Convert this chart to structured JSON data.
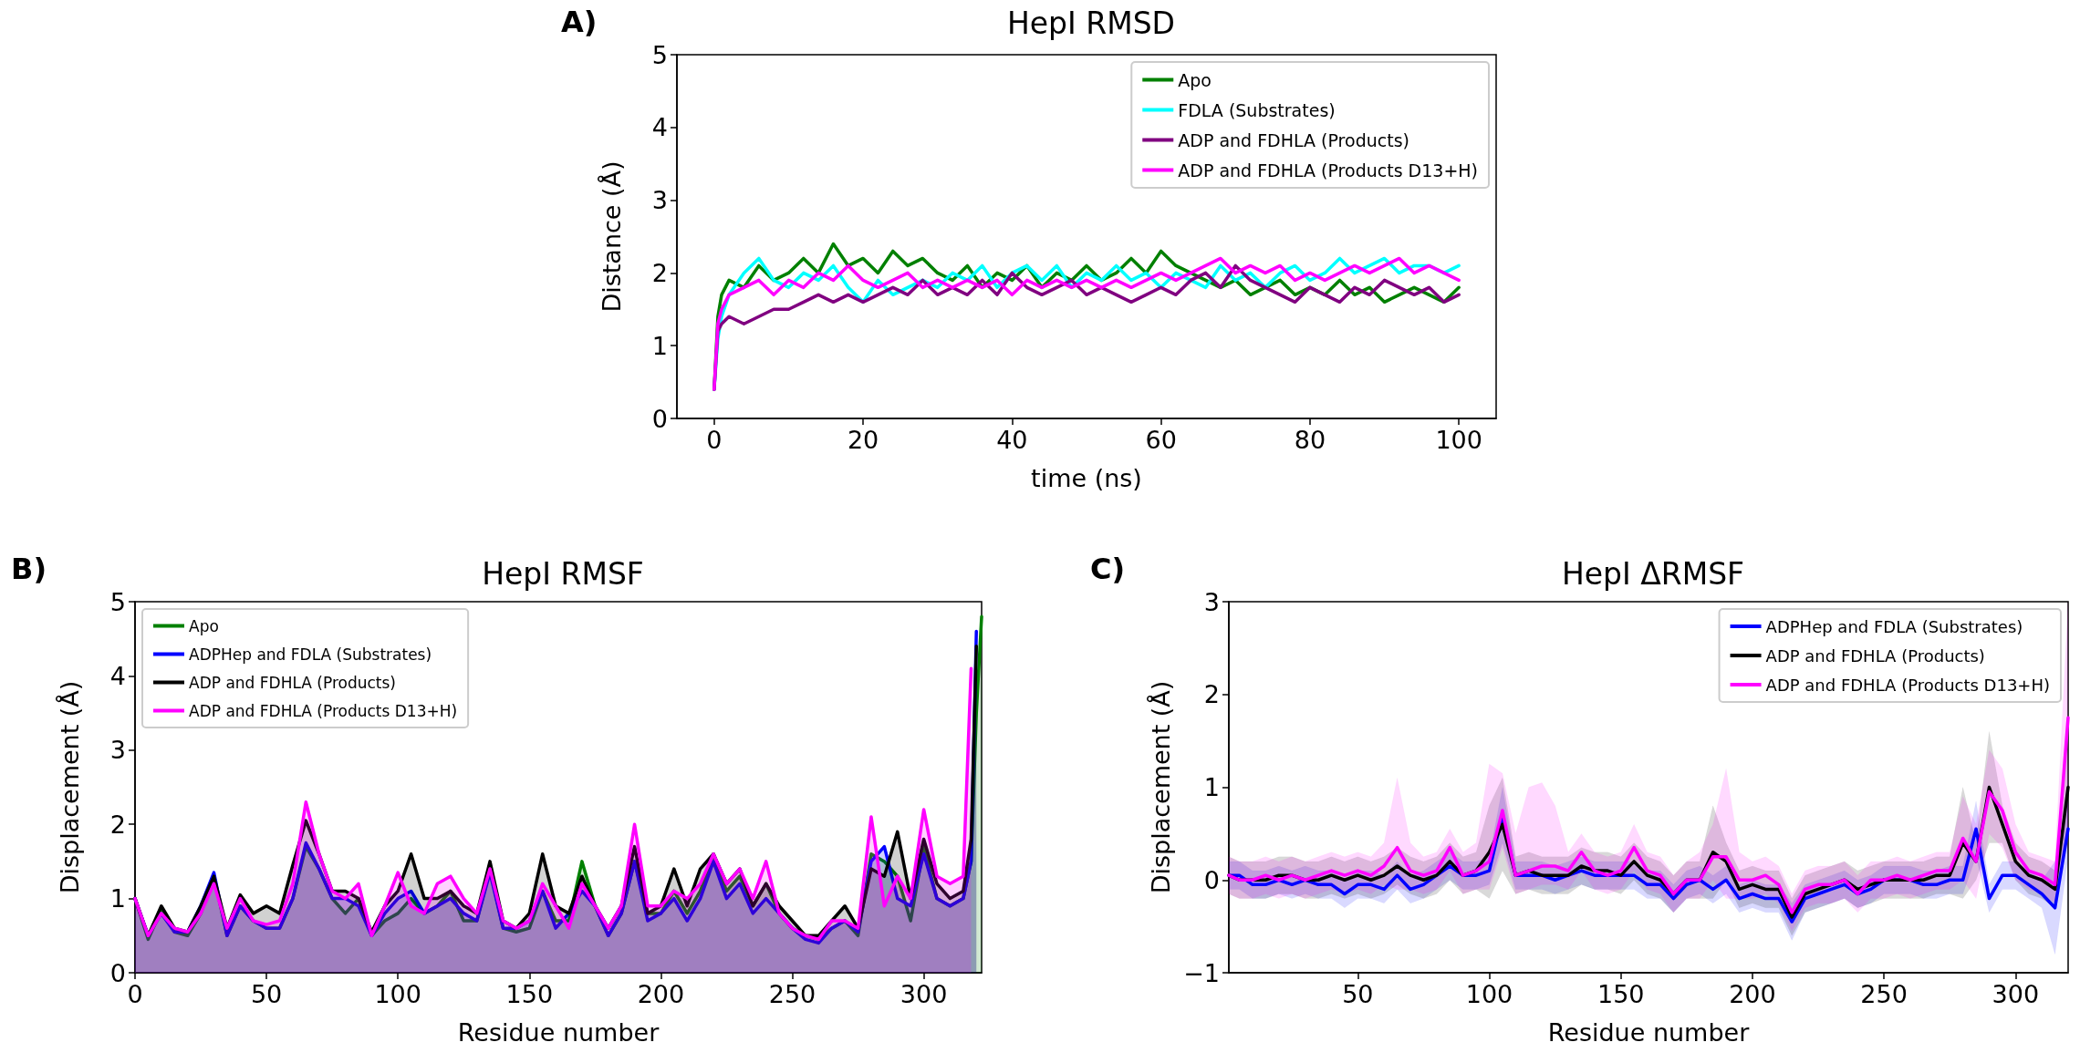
{
  "chart_data": [
    {
      "type": "line",
      "title": "HepI RMSD",
      "xlabel": "time (ns)",
      "ylabel": "Distance (Å)",
      "annotations": [
        "A)"
      ],
      "legend": "top right",
      "xlim": [
        -5,
        105
      ],
      "xticks": [
        0,
        20,
        40,
        60,
        80,
        100
      ],
      "ylim": [
        0,
        5
      ],
      "yticks": [
        0,
        1,
        2,
        3,
        4,
        5
      ],
      "x": [
        0,
        0.5,
        1,
        2,
        4,
        6,
        8,
        10,
        12,
        14,
        16,
        18,
        20,
        22,
        24,
        26,
        28,
        30,
        32,
        34,
        36,
        38,
        40,
        42,
        44,
        46,
        48,
        50,
        52,
        54,
        56,
        58,
        60,
        62,
        64,
        66,
        68,
        70,
        72,
        74,
        76,
        78,
        80,
        82,
        84,
        86,
        88,
        90,
        92,
        94,
        96,
        98,
        100
      ],
      "series": [
        {
          "name": "Apo",
          "color": "#008000",
          "values": [
            0.4,
            1.4,
            1.7,
            1.9,
            1.8,
            2.1,
            1.9,
            2.0,
            2.2,
            2.0,
            2.4,
            2.1,
            2.2,
            2.0,
            2.3,
            2.1,
            2.2,
            2.0,
            1.9,
            2.1,
            1.8,
            2.0,
            1.9,
            2.1,
            1.8,
            2.0,
            1.9,
            2.1,
            1.9,
            2.0,
            2.2,
            2.0,
            2.3,
            2.1,
            2.0,
            1.9,
            1.8,
            1.9,
            1.7,
            1.8,
            1.9,
            1.7,
            1.8,
            1.7,
            1.9,
            1.7,
            1.8,
            1.6,
            1.7,
            1.8,
            1.7,
            1.6,
            1.8
          ]
        },
        {
          "name": "FDLA (Substrates)",
          "color": "#00ffff",
          "values": [
            0.4,
            1.1,
            1.4,
            1.7,
            2.0,
            2.2,
            1.9,
            1.8,
            2.0,
            1.9,
            2.1,
            1.8,
            1.6,
            1.9,
            1.7,
            1.8,
            1.9,
            1.8,
            2.0,
            1.9,
            2.1,
            1.8,
            2.0,
            2.1,
            1.9,
            2.1,
            1.8,
            2.0,
            1.9,
            2.1,
            1.9,
            2.0,
            1.8,
            2.0,
            1.9,
            1.8,
            2.1,
            1.9,
            2.0,
            1.8,
            2.0,
            2.1,
            1.9,
            2.0,
            2.2,
            2.0,
            2.1,
            2.2,
            2.0,
            2.1,
            2.1,
            2.0,
            2.1
          ]
        },
        {
          "name": "ADP and FDHLA (Products)",
          "color": "#800080",
          "values": [
            0.4,
            1.2,
            1.3,
            1.4,
            1.3,
            1.4,
            1.5,
            1.5,
            1.6,
            1.7,
            1.6,
            1.7,
            1.6,
            1.7,
            1.8,
            1.7,
            1.9,
            1.7,
            1.8,
            1.7,
            1.9,
            1.7,
            2.0,
            1.8,
            1.7,
            1.8,
            1.9,
            1.7,
            1.8,
            1.7,
            1.6,
            1.7,
            1.8,
            1.7,
            1.9,
            2.0,
            1.8,
            2.1,
            1.9,
            1.8,
            1.7,
            1.6,
            1.8,
            1.7,
            1.6,
            1.8,
            1.7,
            1.9,
            1.8,
            1.7,
            1.8,
            1.6,
            1.7
          ]
        },
        {
          "name": "ADP and FDHLA (Products D13+H)",
          "color": "#ff00ff",
          "values": [
            0.4,
            1.3,
            1.5,
            1.7,
            1.8,
            1.9,
            1.7,
            1.9,
            1.8,
            2.0,
            1.9,
            2.1,
            1.9,
            1.8,
            1.9,
            2.0,
            1.8,
            1.9,
            1.8,
            1.9,
            1.8,
            1.9,
            1.7,
            1.9,
            1.8,
            1.9,
            1.8,
            1.9,
            1.8,
            1.9,
            1.8,
            1.9,
            2.0,
            1.9,
            2.0,
            2.1,
            2.2,
            2.0,
            2.1,
            2.0,
            2.1,
            1.9,
            2.0,
            1.9,
            2.0,
            2.1,
            2.0,
            2.1,
            2.2,
            2.0,
            2.1,
            2.0,
            1.9
          ]
        }
      ]
    },
    {
      "type": "area",
      "title": "HepI RMSF",
      "xlabel": "Residue number",
      "ylabel": "Displacement (Å)",
      "annotations": [
        "B)"
      ],
      "legend": "top left",
      "xlim": [
        0,
        322
      ],
      "xticks": [
        0,
        50,
        100,
        150,
        200,
        250,
        300
      ],
      "ylim": [
        0,
        5
      ],
      "yticks": [
        0,
        1,
        2,
        3,
        4,
        5
      ],
      "x": [
        0,
        5,
        10,
        15,
        20,
        25,
        30,
        35,
        40,
        45,
        50,
        55,
        60,
        65,
        70,
        75,
        80,
        85,
        90,
        95,
        100,
        105,
        110,
        115,
        120,
        125,
        130,
        135,
        140,
        145,
        150,
        155,
        160,
        165,
        170,
        175,
        180,
        185,
        190,
        195,
        200,
        205,
        210,
        215,
        220,
        225,
        230,
        235,
        240,
        245,
        250,
        255,
        260,
        265,
        270,
        275,
        280,
        285,
        290,
        295,
        300,
        305,
        310,
        315,
        318,
        320,
        322
      ],
      "series": [
        {
          "name": "Apo",
          "color": "#008000",
          "values": [
            1.0,
            0.45,
            0.85,
            0.55,
            0.5,
            0.8,
            1.3,
            0.5,
            0.9,
            0.7,
            0.6,
            0.6,
            1.0,
            1.7,
            1.4,
            1.0,
            0.8,
            1.0,
            0.5,
            0.7,
            0.8,
            1.0,
            0.8,
            0.9,
            1.1,
            0.7,
            0.7,
            1.4,
            0.6,
            0.55,
            0.6,
            1.1,
            0.7,
            0.7,
            1.5,
            0.9,
            0.5,
            0.8,
            1.5,
            0.8,
            0.8,
            1.1,
            0.8,
            1.1,
            1.6,
            1.1,
            1.3,
            0.9,
            1.2,
            0.8,
            0.6,
            0.5,
            0.45,
            0.6,
            0.7,
            0.5,
            1.6,
            1.5,
            1.3,
            0.7,
            1.7,
            1.0,
            0.9,
            1.0,
            1.5,
            3.5,
            4.8
          ]
        },
        {
          "name": "ADPHep and FDLA (Substrates)",
          "color": "#0000ff",
          "values": [
            1.0,
            0.5,
            0.8,
            0.55,
            0.55,
            0.9,
            1.35,
            0.5,
            0.9,
            0.7,
            0.6,
            0.6,
            1.0,
            1.75,
            1.4,
            1.0,
            1.0,
            0.9,
            0.5,
            0.8,
            1.0,
            1.1,
            0.8,
            0.9,
            1.0,
            0.8,
            0.7,
            1.35,
            0.6,
            0.6,
            0.7,
            1.1,
            0.6,
            0.8,
            1.1,
            0.9,
            0.5,
            0.8,
            1.5,
            0.7,
            0.8,
            1.0,
            0.7,
            1.0,
            1.5,
            1.0,
            1.2,
            0.8,
            1.0,
            0.8,
            0.6,
            0.45,
            0.4,
            0.6,
            0.7,
            0.55,
            1.5,
            1.7,
            1.0,
            0.9,
            1.6,
            1.0,
            0.9,
            1.0,
            1.5,
            4.6,
            null
          ]
        },
        {
          "name": "ADP and FDHLA (Products)",
          "color": "#000000",
          "values": [
            1.0,
            0.5,
            0.9,
            0.6,
            0.55,
            0.9,
            1.3,
            0.6,
            1.05,
            0.8,
            0.9,
            0.8,
            1.45,
            2.05,
            1.6,
            1.1,
            1.1,
            1.0,
            0.55,
            0.9,
            1.1,
            1.6,
            1.0,
            1.0,
            1.1,
            0.9,
            0.8,
            1.5,
            0.7,
            0.6,
            0.8,
            1.6,
            0.9,
            0.8,
            1.3,
            0.9,
            0.6,
            0.9,
            1.7,
            0.8,
            0.9,
            1.4,
            0.9,
            1.4,
            1.6,
            1.2,
            1.4,
            0.9,
            1.2,
            0.9,
            0.7,
            0.5,
            0.5,
            0.7,
            0.9,
            0.6,
            1.4,
            1.3,
            1.9,
            1.0,
            1.8,
            1.2,
            1.0,
            1.1,
            1.8,
            4.4,
            null
          ]
        },
        {
          "name": "ADP and FDHLA (Products D13+H)",
          "color": "#ff00ff",
          "values": [
            1.0,
            0.5,
            0.8,
            0.6,
            0.55,
            0.8,
            1.2,
            0.6,
            1.0,
            0.7,
            0.65,
            0.7,
            1.2,
            2.3,
            1.6,
            1.1,
            1.0,
            1.2,
            0.5,
            0.9,
            1.35,
            0.9,
            0.8,
            1.2,
            1.3,
            1.0,
            0.8,
            1.4,
            0.7,
            0.6,
            0.7,
            1.2,
            0.9,
            0.6,
            1.2,
            0.9,
            0.6,
            0.9,
            2.0,
            0.9,
            0.9,
            1.1,
            1.0,
            1.2,
            1.6,
            1.2,
            1.4,
            1.0,
            1.5,
            0.8,
            0.6,
            0.5,
            0.45,
            0.7,
            0.7,
            0.6,
            2.1,
            0.9,
            1.3,
            1.0,
            2.2,
            1.3,
            1.2,
            1.3,
            4.1,
            null,
            null
          ]
        }
      ]
    },
    {
      "type": "line",
      "title": "HepI ΔRMSF",
      "xlabel": "Residue number",
      "ylabel": "Displacement (Å)",
      "annotations": [
        "C)"
      ],
      "legend": "top right",
      "xlim": [
        1,
        320
      ],
      "xticks": [
        50,
        100,
        150,
        200,
        250,
        300
      ],
      "ylim": [
        -1,
        3
      ],
      "yticks": [
        {
          "value": -1,
          "label": "−1"
        },
        0,
        1,
        2,
        3
      ],
      "x": [
        1,
        5,
        10,
        15,
        20,
        25,
        30,
        35,
        40,
        45,
        50,
        55,
        60,
        65,
        70,
        75,
        80,
        85,
        90,
        95,
        100,
        105,
        110,
        115,
        120,
        125,
        130,
        135,
        140,
        145,
        150,
        155,
        160,
        165,
        170,
        175,
        180,
        185,
        190,
        195,
        200,
        205,
        210,
        215,
        220,
        225,
        230,
        235,
        240,
        245,
        250,
        255,
        260,
        265,
        270,
        275,
        280,
        285,
        290,
        295,
        300,
        305,
        310,
        315,
        320
      ],
      "series": [
        {
          "name": "ADPHep and FDLA (Substrates)",
          "color": "#0000ff",
          "values": [
            0.05,
            0.05,
            -0.05,
            -0.05,
            0.0,
            -0.05,
            0.0,
            -0.05,
            -0.05,
            -0.15,
            -0.05,
            -0.05,
            -0.1,
            0.05,
            -0.1,
            -0.05,
            0.05,
            0.15,
            0.05,
            0.05,
            0.1,
            0.7,
            0.05,
            0.05,
            0.05,
            0.0,
            0.05,
            0.1,
            0.05,
            0.05,
            0.05,
            0.05,
            -0.05,
            -0.05,
            -0.2,
            -0.05,
            0.0,
            -0.1,
            0.0,
            -0.2,
            -0.15,
            -0.2,
            -0.2,
            -0.45,
            -0.2,
            -0.15,
            -0.1,
            -0.05,
            -0.15,
            -0.1,
            0.0,
            0.0,
            0.0,
            -0.05,
            -0.05,
            0.0,
            0.0,
            0.55,
            -0.2,
            0.05,
            0.05,
            -0.05,
            -0.15,
            -0.3,
            0.55
          ],
          "lower": [
            -0.1,
            -0.1,
            -0.2,
            -0.2,
            -0.15,
            -0.2,
            -0.15,
            -0.2,
            -0.2,
            -0.3,
            -0.2,
            -0.2,
            -0.25,
            -0.1,
            -0.25,
            -0.2,
            -0.1,
            0.0,
            -0.1,
            -0.1,
            -0.05,
            0.4,
            -0.1,
            -0.1,
            -0.1,
            -0.15,
            -0.1,
            -0.05,
            -0.1,
            -0.1,
            -0.1,
            -0.1,
            -0.2,
            -0.2,
            -0.35,
            -0.2,
            -0.15,
            -0.25,
            -0.15,
            -0.35,
            -0.3,
            -0.35,
            -0.35,
            -0.65,
            -0.35,
            -0.3,
            -0.25,
            -0.2,
            -0.3,
            -0.25,
            -0.15,
            -0.15,
            -0.15,
            -0.2,
            -0.2,
            -0.15,
            -0.15,
            0.25,
            -0.35,
            -0.1,
            -0.1,
            -0.2,
            -0.3,
            -0.8,
            0.25
          ],
          "upper": [
            0.2,
            0.2,
            0.1,
            0.1,
            0.15,
            0.1,
            0.15,
            0.1,
            0.1,
            0.0,
            0.1,
            0.1,
            0.05,
            0.2,
            0.05,
            0.1,
            0.2,
            0.3,
            0.2,
            0.2,
            0.25,
            1.0,
            0.2,
            0.2,
            0.2,
            0.15,
            0.2,
            0.25,
            0.2,
            0.2,
            0.2,
            0.2,
            0.1,
            0.1,
            -0.05,
            0.1,
            0.15,
            0.05,
            0.15,
            -0.05,
            0.0,
            -0.05,
            -0.05,
            -0.25,
            -0.05,
            0.0,
            0.05,
            0.1,
            0.0,
            0.05,
            0.15,
            0.15,
            0.15,
            0.1,
            0.1,
            0.15,
            0.15,
            0.85,
            -0.05,
            0.2,
            0.2,
            0.1,
            0.0,
            0.2,
            0.85
          ]
        },
        {
          "name": "ADP and FDHLA (Products)",
          "color": "#000000",
          "values": [
            0.05,
            0.0,
            0.0,
            0.0,
            0.05,
            0.05,
            0.0,
            0.0,
            0.05,
            0.0,
            0.05,
            0.0,
            0.05,
            0.15,
            0.05,
            0.0,
            0.05,
            0.2,
            0.05,
            0.1,
            0.3,
            0.6,
            0.05,
            0.1,
            0.05,
            0.05,
            0.05,
            0.15,
            0.1,
            0.1,
            0.05,
            0.2,
            0.05,
            0.0,
            -0.15,
            0.0,
            0.0,
            0.3,
            0.2,
            -0.1,
            -0.05,
            -0.1,
            -0.1,
            -0.4,
            -0.15,
            -0.1,
            -0.05,
            0.0,
            -0.1,
            -0.05,
            0.0,
            0.0,
            0.0,
            0.0,
            0.05,
            0.05,
            0.4,
            0.2,
            1.0,
            0.6,
            0.2,
            0.05,
            0.0,
            -0.1,
            1.0
          ],
          "lower": [
            -0.15,
            -0.2,
            -0.2,
            -0.2,
            -0.15,
            -0.15,
            -0.2,
            -0.2,
            -0.15,
            -0.2,
            -0.15,
            -0.2,
            -0.15,
            -0.05,
            -0.15,
            -0.2,
            -0.15,
            0.0,
            -0.15,
            -0.1,
            -0.2,
            0.1,
            -0.15,
            -0.1,
            -0.15,
            -0.15,
            -0.15,
            -0.05,
            -0.1,
            -0.1,
            -0.15,
            0.0,
            -0.15,
            -0.2,
            -0.35,
            -0.2,
            -0.2,
            -0.2,
            0.0,
            -0.3,
            -0.25,
            -0.3,
            -0.3,
            -0.6,
            -0.35,
            -0.3,
            -0.25,
            -0.2,
            -0.3,
            -0.25,
            -0.2,
            -0.2,
            -0.2,
            -0.2,
            -0.15,
            -0.15,
            -0.2,
            0.0,
            0.4,
            0.4,
            0.0,
            -0.15,
            -0.2,
            -0.3,
            0.5
          ],
          "upper": [
            0.25,
            0.2,
            0.2,
            0.2,
            0.25,
            0.25,
            0.2,
            0.2,
            0.25,
            0.2,
            0.25,
            0.2,
            0.25,
            0.35,
            0.25,
            0.2,
            0.25,
            0.4,
            0.25,
            0.3,
            0.8,
            1.1,
            0.25,
            0.3,
            0.25,
            0.25,
            0.25,
            0.35,
            0.3,
            0.3,
            0.25,
            0.4,
            0.25,
            0.2,
            0.05,
            0.2,
            0.2,
            0.8,
            0.4,
            0.1,
            0.15,
            0.1,
            0.1,
            -0.2,
            0.05,
            0.1,
            0.15,
            0.2,
            0.1,
            0.15,
            0.2,
            0.2,
            0.2,
            0.2,
            0.25,
            0.25,
            1.0,
            0.4,
            1.6,
            0.8,
            0.4,
            0.25,
            0.2,
            0.1,
            1.5
          ]
        },
        {
          "name": "ADP and FDHLA (Products D13+H)",
          "color": "#ff00ff",
          "values": [
            0.05,
            0.0,
            0.0,
            0.05,
            0.0,
            0.05,
            0.0,
            0.05,
            0.1,
            0.05,
            0.1,
            0.05,
            0.15,
            0.35,
            0.1,
            0.05,
            0.1,
            0.35,
            0.05,
            0.1,
            0.2,
            0.75,
            0.05,
            0.1,
            0.15,
            0.15,
            0.1,
            0.3,
            0.1,
            0.05,
            0.1,
            0.35,
            0.1,
            0.05,
            -0.15,
            0.0,
            0.0,
            0.25,
            0.25,
            0.0,
            0.0,
            0.05,
            -0.05,
            -0.35,
            -0.1,
            -0.05,
            -0.05,
            0.0,
            -0.15,
            0.0,
            0.0,
            0.05,
            0.0,
            0.05,
            0.1,
            0.1,
            0.45,
            0.2,
            0.95,
            0.75,
            0.3,
            0.1,
            0.05,
            -0.05,
            1.75
          ],
          "lower": [
            -0.15,
            -0.2,
            -0.2,
            -0.15,
            -0.2,
            -0.15,
            -0.2,
            -0.15,
            -0.1,
            -0.15,
            -0.1,
            -0.15,
            -0.05,
            -0.1,
            -0.1,
            -0.15,
            -0.1,
            0.1,
            -0.15,
            -0.1,
            -0.1,
            0.35,
            -0.15,
            -0.1,
            -0.05,
            -0.05,
            -0.1,
            0.1,
            -0.1,
            -0.15,
            -0.1,
            0.1,
            -0.1,
            -0.15,
            -0.35,
            -0.2,
            -0.2,
            0.0,
            -0.2,
            -0.2,
            -0.2,
            -0.15,
            -0.25,
            -0.55,
            -0.3,
            -0.25,
            -0.25,
            -0.2,
            -0.35,
            -0.2,
            -0.2,
            -0.15,
            -0.2,
            -0.15,
            -0.1,
            -0.1,
            0.0,
            -0.2,
            0.5,
            0.35,
            0.0,
            -0.1,
            -0.15,
            -0.25,
            0.5
          ],
          "upper": [
            0.25,
            0.2,
            0.2,
            0.25,
            0.2,
            0.25,
            0.2,
            0.25,
            0.3,
            0.25,
            0.3,
            0.25,
            0.4,
            1.1,
            0.4,
            0.25,
            0.3,
            0.55,
            0.3,
            0.4,
            1.25,
            1.15,
            0.5,
            1.0,
            1.05,
            0.8,
            0.3,
            0.5,
            0.3,
            0.25,
            0.3,
            0.6,
            0.3,
            0.25,
            0.05,
            0.2,
            0.3,
            0.6,
            1.2,
            0.3,
            0.2,
            0.25,
            0.15,
            -0.15,
            0.1,
            0.15,
            0.15,
            0.2,
            0.05,
            0.2,
            0.2,
            0.25,
            0.2,
            0.25,
            0.3,
            0.3,
            0.9,
            0.6,
            1.4,
            1.2,
            0.6,
            0.3,
            0.25,
            0.2,
            3.0
          ]
        }
      ]
    }
  ]
}
